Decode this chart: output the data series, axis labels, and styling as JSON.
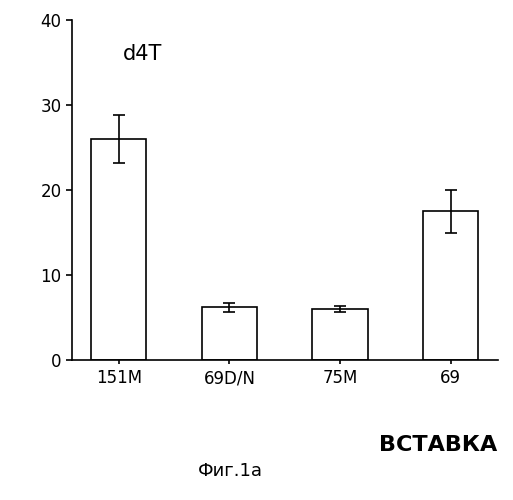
{
  "categories": [
    "151M",
    "69D/N",
    "75M",
    "69"
  ],
  "values": [
    26.0,
    6.2,
    6.0,
    17.5
  ],
  "errors": [
    2.8,
    0.5,
    0.4,
    2.5
  ],
  "title_text": "d4T",
  "xlabel_bottom": "ВСТАВКА",
  "caption": "Фиг.1а",
  "ylim": [
    0,
    40
  ],
  "yticks": [
    0,
    10,
    20,
    30,
    40
  ],
  "bar_color": "#ffffff",
  "bar_edgecolor": "#000000",
  "background_color": "#ffffff",
  "bar_width": 0.5,
  "figsize": [
    5.13,
    5.0
  ],
  "dpi": 100
}
